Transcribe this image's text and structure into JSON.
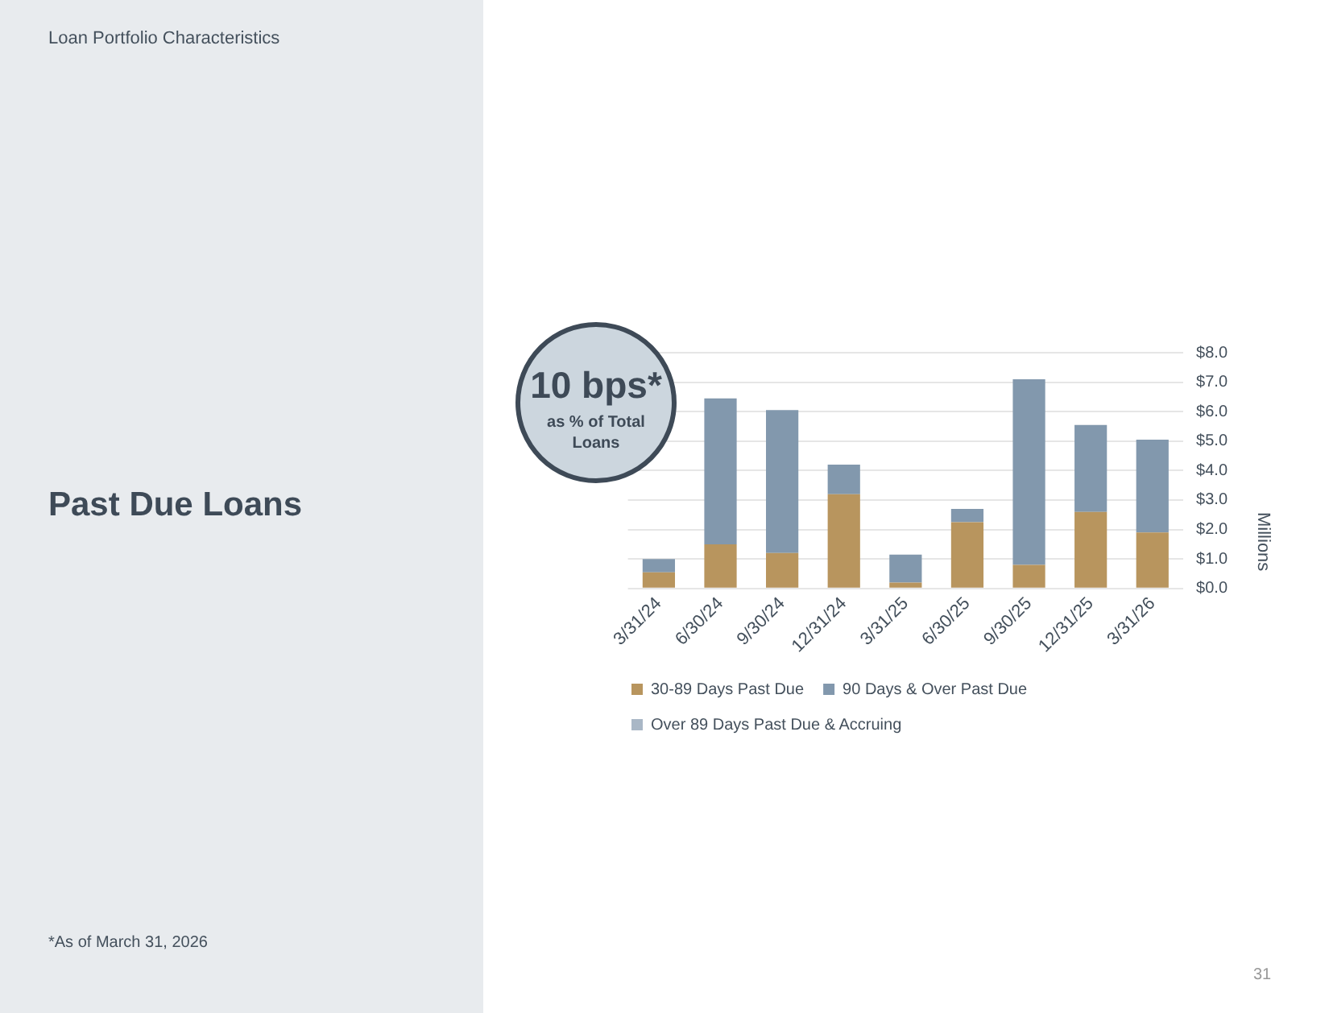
{
  "chart_data": {
    "type": "bar",
    "title": "Past Due Loans",
    "ylabel": "Millions",
    "annotations": [
      "Loan Portfolio Characteristics",
      "10 bps*",
      "as % of Total Loans",
      "*As of March 31, 2026",
      "31"
    ],
    "categories": [
      "3/31/24",
      "6/30/24",
      "9/30/24",
      "12/31/24",
      "3/31/25",
      "6/30/25",
      "9/30/25",
      "12/31/25",
      "3/31/26"
    ],
    "stacked": true,
    "series": [
      {
        "name": "30-89 Days Past Due",
        "color": "#b8955e",
        "values": [
          0.55,
          1.5,
          1.2,
          3.2,
          0.2,
          2.25,
          0.8,
          2.6,
          1.9
        ]
      },
      {
        "name": "90 Days & Over Past Due",
        "color": "#8298ad",
        "values": [
          0.45,
          4.95,
          4.85,
          1.0,
          0.95,
          0.45,
          6.3,
          2.95,
          3.15
        ]
      },
      {
        "name": "Over 89 Days Past Due & Accruing",
        "color": "#a9b7c6",
        "values": [
          0,
          0,
          0,
          0,
          0,
          0,
          0,
          0,
          0
        ]
      }
    ],
    "ylim": [
      0,
      8
    ],
    "yticks": [
      {
        "value": 0,
        "label": "$0.0"
      },
      {
        "value": 1,
        "label": "$1.0"
      },
      {
        "value": 2,
        "label": "$2.0"
      },
      {
        "value": 3,
        "label": "$3.0"
      },
      {
        "value": 4,
        "label": "$4.0"
      },
      {
        "value": 5,
        "label": "$5.0"
      },
      {
        "value": 6,
        "label": "$6.0"
      },
      {
        "value": 7,
        "label": "$7.0"
      },
      {
        "value": 8,
        "label": "$8.0"
      }
    ],
    "grid": "y",
    "legend": "bottom"
  }
}
